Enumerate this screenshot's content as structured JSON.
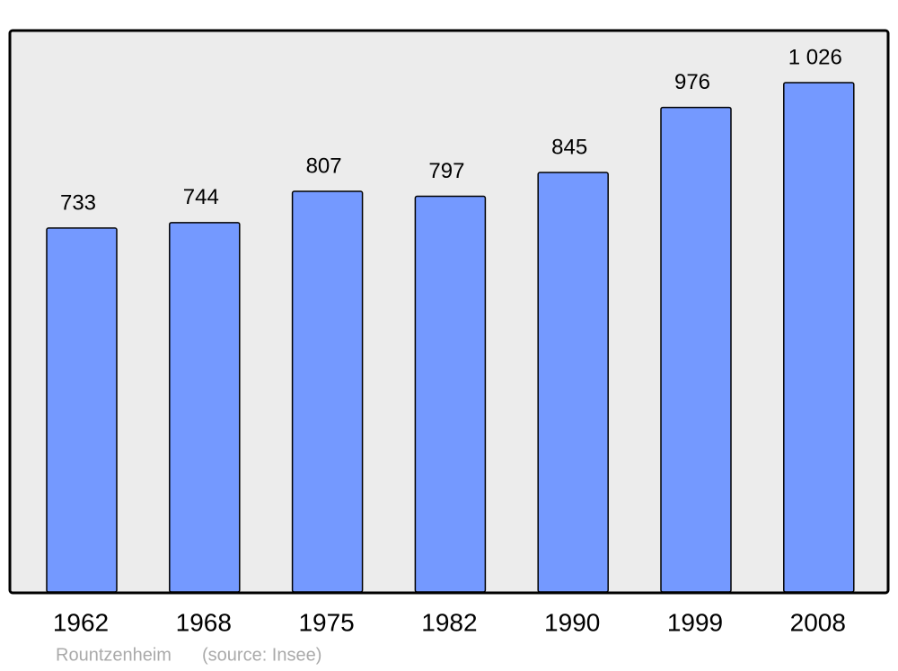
{
  "chart_data": {
    "type": "bar",
    "title": "Rountzenheim",
    "source": "(source: Insee)",
    "categories": [
      "1962",
      "1968",
      "1975",
      "1982",
      "1990",
      "1999",
      "2008"
    ],
    "values": [
      733,
      744,
      807,
      797,
      845,
      976,
      1026
    ],
    "value_labels": [
      "733",
      "744",
      "807",
      "797",
      "845",
      "976",
      "1 026"
    ],
    "color": "#7499ff"
  }
}
